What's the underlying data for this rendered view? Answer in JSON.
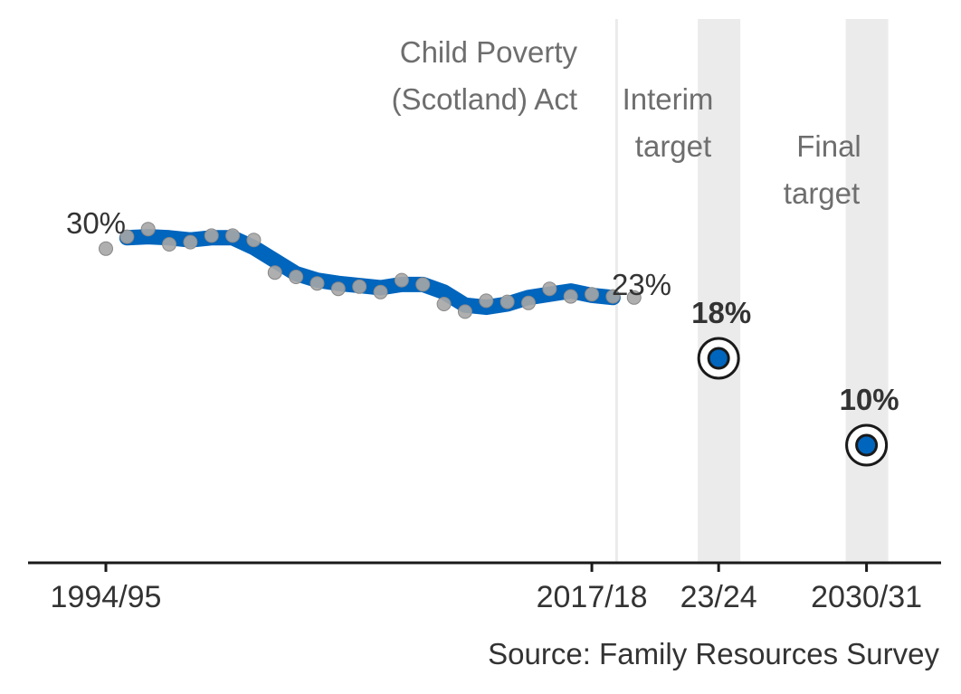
{
  "chart_data": {
    "type": "scatter",
    "title": "",
    "xlabel": "",
    "ylabel": "",
    "x_ticks": [
      {
        "year": 1994,
        "label": "1994/95"
      },
      {
        "year": 2017,
        "label": "2017/18"
      },
      {
        "year": 2023,
        "label": "23/24"
      },
      {
        "year": 2030,
        "label": "2030/31"
      }
    ],
    "annual_rates": {
      "x": [
        1994,
        1995,
        1996,
        1997,
        1998,
        1999,
        2000,
        2001,
        2002,
        2003,
        2004,
        2005,
        2006,
        2007,
        2008,
        2009,
        2010,
        2011,
        2012,
        2013,
        2014,
        2015,
        2016,
        2017,
        2018,
        2019
      ],
      "y": [
        28.1,
        29.2,
        29.9,
        28.5,
        28.7,
        29.3,
        29.3,
        28.9,
        25.9,
        25.5,
        24.9,
        24.4,
        24.6,
        24.1,
        25.2,
        24.8,
        23.0,
        22.3,
        23.3,
        23.2,
        23.1,
        24.4,
        23.7,
        23.9,
        23.7,
        23.6
      ]
    },
    "trend_line": {
      "x": [
        1995,
        1996,
        1997,
        1998,
        1999,
        2000,
        2001,
        2002,
        2003,
        2004,
        2005,
        2006,
        2007,
        2008,
        2009,
        2010,
        2011,
        2012,
        2013,
        2014,
        2015,
        2016,
        2017,
        2018
      ],
      "y": [
        29.1,
        29.2,
        29.1,
        28.9,
        29.1,
        29.1,
        28.2,
        27.0,
        25.8,
        25.2,
        24.9,
        24.7,
        24.5,
        24.8,
        24.8,
        24.1,
        22.9,
        22.7,
        23.0,
        23.6,
        23.9,
        24.2,
        23.8,
        23.6
      ]
    },
    "targets": [
      {
        "x": 2023,
        "y": 18,
        "label": "18%"
      },
      {
        "x": 2030,
        "y": 10,
        "label": "10%"
      }
    ],
    "value_labels": [
      {
        "label": "30%"
      },
      {
        "label": "23%"
      }
    ],
    "annotations": {
      "act_line": [
        "Child Poverty",
        "(Scotland) Act"
      ],
      "interim": [
        "Interim",
        "target"
      ],
      "final": [
        "Final",
        "target"
      ]
    },
    "grid": false,
    "legend": "none",
    "colors": {
      "trend": "#0065bd",
      "points": "#a6a6a6",
      "target_fill": "#0065bd",
      "band": "#ebebeb",
      "act_line": "#ebebeb"
    },
    "source": "Source: Family Resources Survey"
  }
}
